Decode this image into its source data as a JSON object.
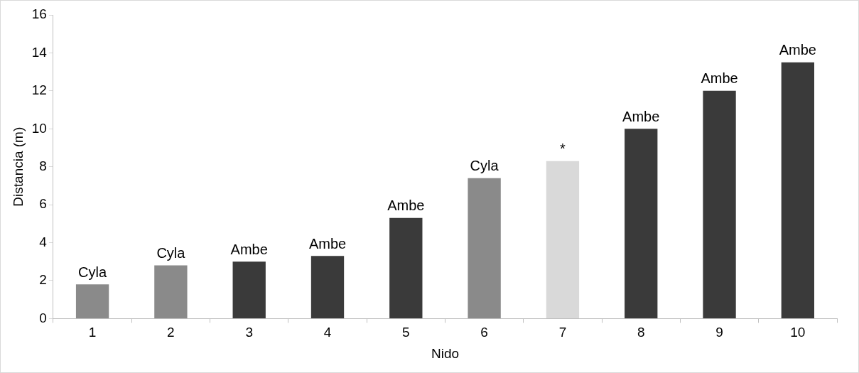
{
  "chart_data": {
    "type": "bar",
    "xlabel": "Nido",
    "ylabel": "Distancia (m)",
    "categories": [
      "1",
      "2",
      "3",
      "4",
      "5",
      "6",
      "7",
      "8",
      "9",
      "10"
    ],
    "values": [
      1.8,
      2.8,
      3.0,
      3.3,
      5.3,
      7.4,
      8.3,
      10.0,
      12.0,
      13.5
    ],
    "colors": [
      "#8a8a8a",
      "#8a8a8a",
      "#3a3a3a",
      "#3a3a3a",
      "#3a3a3a",
      "#8a8a8a",
      "#d9d9d9",
      "#3a3a3a",
      "#3a3a3a",
      "#3a3a3a"
    ],
    "value_labels": [
      "Cyla",
      "Cyla",
      "Ambe",
      "Ambe",
      "Ambe",
      "Cyla",
      "*",
      "Ambe",
      "Ambe",
      "Ambe"
    ],
    "ylim": [
      0,
      16
    ],
    "yticks": [
      0,
      2,
      4,
      6,
      8,
      10,
      12,
      14,
      16
    ],
    "grid": false,
    "legend": false
  }
}
